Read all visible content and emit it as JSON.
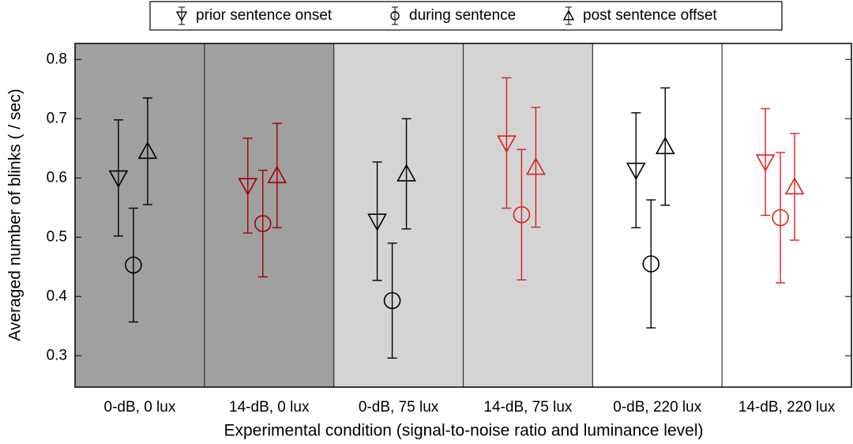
{
  "chart_data": {
    "type": "errorbar",
    "xlabel": "Experimental condition (signal-to-noise ratio and luminance level)",
    "ylabel": "Averaged number of blinks ( / sec)",
    "categories": [
      "0-dB, 0 lux",
      "14-dB, 0 lux",
      "0-dB, 75 lux",
      "14-dB, 75 lux",
      "0-dB, 220 lux",
      "14-dB, 220 lux"
    ],
    "category_colors": [
      "#000000",
      "#a00000",
      "#000000",
      "#d42020",
      "#000000",
      "#e02020"
    ],
    "backgrounds": [
      "#a0a0a0",
      "#a0a0a0",
      "#d4d4d4",
      "#d4d4d4",
      "#ffffff",
      "#ffffff"
    ],
    "series": [
      {
        "name": "prior sentence onset",
        "marker": "triangle-down",
        "values": [
          0.6,
          0.587,
          0.527,
          0.659,
          0.613,
          0.627
        ],
        "errors": [
          0.098,
          0.08,
          0.1,
          0.11,
          0.097,
          0.09
        ]
      },
      {
        "name": "during sentence",
        "marker": "circle",
        "values": [
          0.453,
          0.523,
          0.393,
          0.538,
          0.455,
          0.533
        ],
        "errors": [
          0.096,
          0.09,
          0.097,
          0.11,
          0.108,
          0.11
        ]
      },
      {
        "name": "post sentence offset",
        "marker": "triangle-up",
        "values": [
          0.645,
          0.604,
          0.607,
          0.618,
          0.653,
          0.585
        ],
        "errors": [
          0.09,
          0.088,
          0.093,
          0.101,
          0.099,
          0.09
        ]
      }
    ],
    "ylim": [
      0.247,
      0.827
    ],
    "yticks": [
      0.3,
      0.4,
      0.5,
      0.6,
      0.7,
      0.8
    ],
    "legend": "top"
  }
}
